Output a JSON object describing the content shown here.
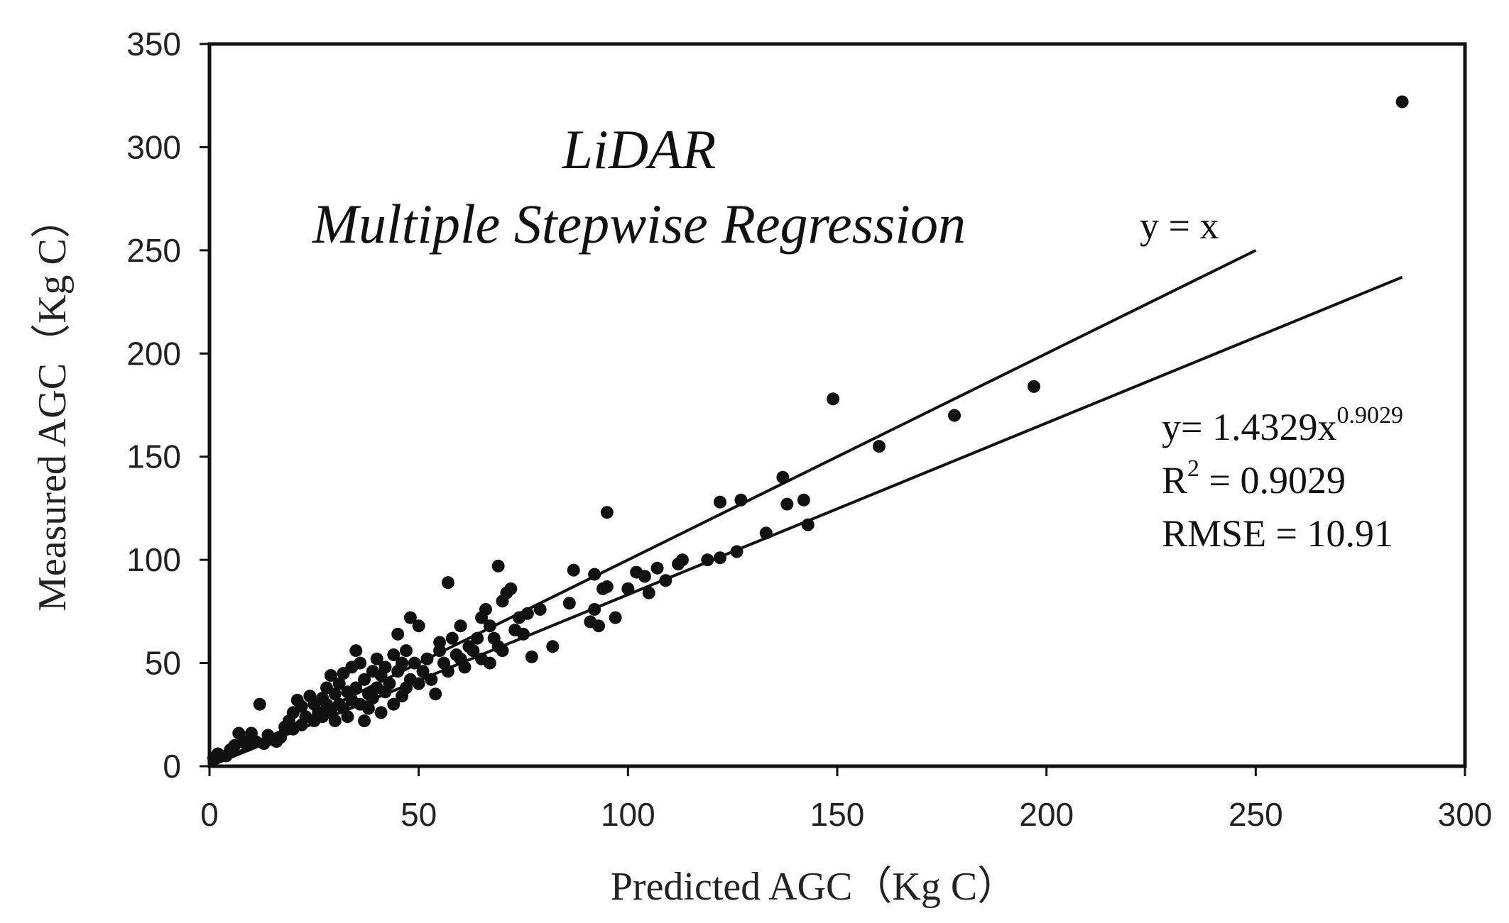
{
  "chart_data": {
    "type": "scatter",
    "title": "LiDAR",
    "subtitle": "Multiple Stepwise Regression",
    "xlabel": "Predicted  AGC（Kg C）",
    "ylabel": "Measured  AGC（Kg C）",
    "xlim": [
      0,
      300
    ],
    "ylim": [
      0,
      350
    ],
    "xticks": [
      "0",
      "50",
      "100",
      "150",
      "200",
      "250",
      "300"
    ],
    "yticks": [
      "0",
      "50",
      "100",
      "150",
      "200",
      "250",
      "300",
      "350"
    ],
    "grid": false,
    "identity_line": {
      "label": "y = x",
      "x": [
        0,
        250
      ],
      "y": [
        0,
        250
      ]
    },
    "fit_line": {
      "x": [
        0,
        285
      ],
      "y": [
        0,
        237
      ]
    },
    "stats": {
      "equation_prefix": "y= 1.4329x",
      "equation_exponent": "0.9029",
      "r2_prefix": "R",
      "r2_sup": "2",
      "r2_suffix": " = 0.9029",
      "rmse": "RMSE = 10.91"
    },
    "points": [
      [
        1,
        4
      ],
      [
        2,
        6
      ],
      [
        4,
        5
      ],
      [
        5,
        8
      ],
      [
        6,
        10
      ],
      [
        7,
        16
      ],
      [
        8,
        12
      ],
      [
        9,
        10
      ],
      [
        10,
        16
      ],
      [
        10,
        14
      ],
      [
        11,
        12
      ],
      [
        12,
        30
      ],
      [
        13,
        11
      ],
      [
        14,
        15
      ],
      [
        15,
        13
      ],
      [
        16,
        12
      ],
      [
        17,
        14
      ],
      [
        18,
        19
      ],
      [
        19,
        22
      ],
      [
        20,
        18
      ],
      [
        20,
        26
      ],
      [
        21,
        32
      ],
      [
        22,
        20
      ],
      [
        22,
        29
      ],
      [
        23,
        24
      ],
      [
        24,
        34
      ],
      [
        25,
        22
      ],
      [
        25,
        30
      ],
      [
        26,
        26
      ],
      [
        27,
        33
      ],
      [
        27,
        24
      ],
      [
        28,
        38
      ],
      [
        28,
        30
      ],
      [
        29,
        27
      ],
      [
        29,
        44
      ],
      [
        30,
        35
      ],
      [
        30,
        22
      ],
      [
        31,
        40
      ],
      [
        31,
        30
      ],
      [
        32,
        45
      ],
      [
        32,
        28
      ],
      [
        33,
        36
      ],
      [
        33,
        24
      ],
      [
        34,
        48
      ],
      [
        34,
        32
      ],
      [
        35,
        56
      ],
      [
        35,
        38
      ],
      [
        36,
        30
      ],
      [
        36,
        50
      ],
      [
        37,
        42
      ],
      [
        37,
        22
      ],
      [
        38,
        35
      ],
      [
        38,
        28
      ],
      [
        39,
        46
      ],
      [
        39,
        33
      ],
      [
        40,
        38
      ],
      [
        40,
        52
      ],
      [
        41,
        26
      ],
      [
        41,
        44
      ],
      [
        42,
        36
      ],
      [
        42,
        48
      ],
      [
        43,
        40
      ],
      [
        44,
        30
      ],
      [
        44,
        54
      ],
      [
        45,
        64
      ],
      [
        45,
        46
      ],
      [
        46,
        50
      ],
      [
        46,
        34
      ],
      [
        47,
        38
      ],
      [
        47,
        56
      ],
      [
        48,
        42
      ],
      [
        48,
        72
      ],
      [
        49,
        50
      ],
      [
        50,
        68
      ],
      [
        50,
        40
      ],
      [
        51,
        46
      ],
      [
        52,
        52
      ],
      [
        53,
        42
      ],
      [
        54,
        35
      ],
      [
        55,
        56
      ],
      [
        55,
        60
      ],
      [
        56,
        50
      ],
      [
        57,
        89
      ],
      [
        57,
        46
      ],
      [
        58,
        62
      ],
      [
        59,
        54
      ],
      [
        60,
        52
      ],
      [
        60,
        68
      ],
      [
        61,
        48
      ],
      [
        62,
        58
      ],
      [
        63,
        56
      ],
      [
        64,
        62
      ],
      [
        65,
        52
      ],
      [
        65,
        72
      ],
      [
        66,
        76
      ],
      [
        67,
        68
      ],
      [
        67,
        50
      ],
      [
        68,
        62
      ],
      [
        69,
        97
      ],
      [
        69,
        58
      ],
      [
        70,
        80
      ],
      [
        70,
        56
      ],
      [
        71,
        84
      ],
      [
        72,
        86
      ],
      [
        73,
        66
      ],
      [
        74,
        72
      ],
      [
        75,
        64
      ],
      [
        76,
        74
      ],
      [
        77,
        53
      ],
      [
        79,
        76
      ],
      [
        82,
        58
      ],
      [
        86,
        79
      ],
      [
        87,
        95
      ],
      [
        91,
        70
      ],
      [
        92,
        93
      ],
      [
        92,
        76
      ],
      [
        93,
        68
      ],
      [
        94,
        86
      ],
      [
        95,
        123
      ],
      [
        95,
        87
      ],
      [
        97,
        72
      ],
      [
        100,
        86
      ],
      [
        102,
        94
      ],
      [
        104,
        92
      ],
      [
        105,
        84
      ],
      [
        107,
        96
      ],
      [
        109,
        90
      ],
      [
        112,
        98
      ],
      [
        113,
        100
      ],
      [
        119,
        100
      ],
      [
        122,
        128
      ],
      [
        122,
        101
      ],
      [
        126,
        104
      ],
      [
        127,
        129
      ],
      [
        133,
        113
      ],
      [
        137,
        140
      ],
      [
        138,
        127
      ],
      [
        142,
        129
      ],
      [
        143,
        117
      ],
      [
        149,
        178
      ],
      [
        160,
        155
      ],
      [
        178,
        170
      ],
      [
        197,
        184
      ],
      [
        285,
        322
      ]
    ]
  }
}
